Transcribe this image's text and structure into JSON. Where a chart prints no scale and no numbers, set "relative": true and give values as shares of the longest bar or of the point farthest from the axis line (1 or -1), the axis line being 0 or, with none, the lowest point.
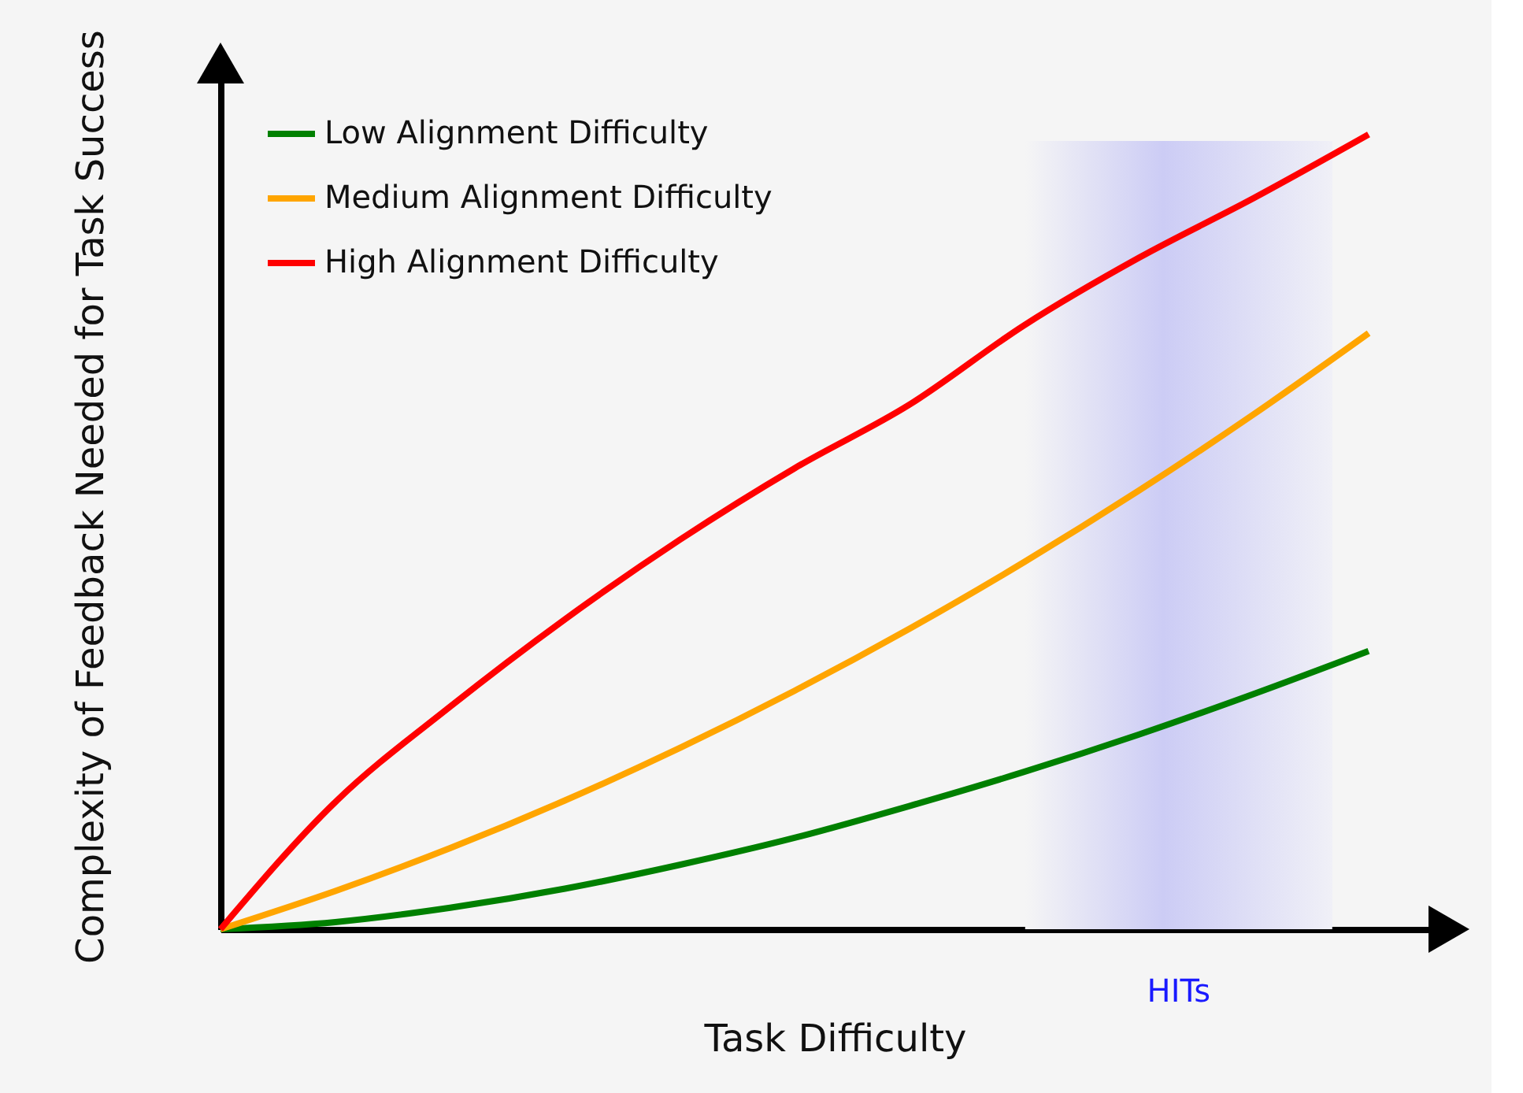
{
  "chart_data": {
    "type": "line",
    "xlabel": "Task Difficulty",
    "ylabel": "Complexity of Feedback Needed for Task Success",
    "relative": true,
    "grid": false,
    "legend": "top left",
    "marker": "none",
    "line_style": "solid",
    "categories": [
      null,
      null,
      null,
      null,
      null,
      null,
      null,
      null,
      null,
      null,
      null
    ],
    "series": [
      {
        "name": "Low Alignment Difficulty",
        "color": "#008000",
        "values": [
          0,
          0.009,
          0.027,
          0.051,
          0.081,
          0.115,
          0.155,
          0.198,
          0.245,
          0.296,
          0.35
        ]
      },
      {
        "name": "Medium Alignment Difficulty",
        "color": "#ffa500",
        "values": [
          0,
          0.048,
          0.102,
          0.162,
          0.228,
          0.3,
          0.378,
          0.462,
          0.552,
          0.648,
          0.75
        ]
      },
      {
        "name": "High Alignment Difficulty",
        "color": "#ff0000",
        "values": [
          0,
          0.16,
          0.28,
          0.39,
          0.49,
          0.58,
          0.66,
          0.76,
          0.845,
          0.92,
          1
        ]
      }
    ],
    "annotations": [
      "HITs"
    ]
  }
}
